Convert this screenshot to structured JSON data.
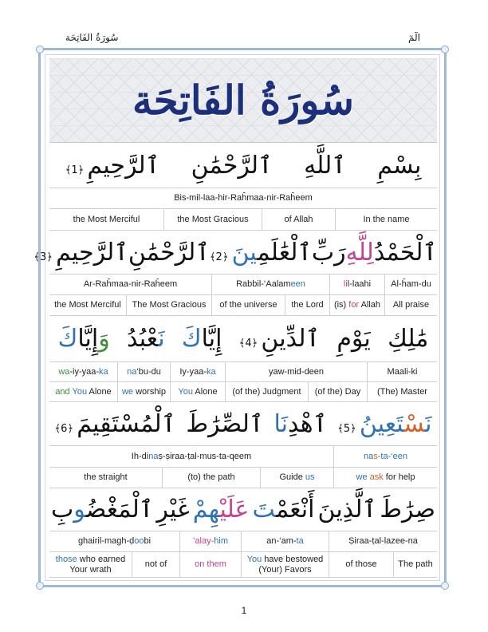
{
  "header": {
    "left": "سُورَةُ الفَاتِحَة",
    "right": "الٓمٓ"
  },
  "banner_title": "سُورَةُ الفَاتِحَة",
  "page_number": "1",
  "colors": {
    "green": "#3f8f3a",
    "blue": "#2f72b5",
    "pink": "#c2448e",
    "orange": "#d4632c",
    "title": "#1c2f7a",
    "frame": "#9db7d6"
  },
  "verses": [
    {
      "arabic": [
        [
          {
            "t": "بِسْمِ"
          }
        ],
        [
          {
            "t": "ٱللَّهِ"
          }
        ],
        [
          {
            "t": "ٱلرَّحْمَٰنِ"
          }
        ],
        [
          {
            "t": "ٱلرَّحِيمِ"
          },
          {
            "t": " ﴿1﴾",
            "m": 1
          }
        ]
      ],
      "translit": [
        [
          {
            "t": "Bis-mil-laa-hir-Raĥmaa-nir-Raĥeem"
          }
        ]
      ],
      "english": [
        [
          {
            "t": "the Most Merciful"
          }
        ],
        [
          {
            "t": "the Most Gracious"
          }
        ],
        [
          {
            "t": "of Allah"
          }
        ],
        [
          {
            "t": "In the name"
          }
        ]
      ]
    },
    {
      "arabic": [
        [
          {
            "t": "ٱلْحَمْدُ"
          }
        ],
        [
          {
            "t": "لِلَّهِ",
            "c": "pink"
          }
        ],
        [
          {
            "t": "رَبِّ"
          }
        ],
        [
          {
            "t": "ٱلْعَٰلَمِ"
          },
          {
            "t": "ينَ",
            "c": "blue"
          },
          {
            "t": " ﴿2﴾",
            "m": 1
          }
        ],
        [
          {
            "t": "ٱلرَّحْمَٰنِ"
          }
        ],
        [
          {
            "t": "ٱلرَّحِيمِ"
          },
          {
            "t": " ﴿3﴾",
            "m": 1
          }
        ]
      ],
      "translit": [
        [
          {
            "t": "Ar-Raĥmaa-nir-Raĥeem"
          }
        ],
        [
          {
            "t": "Rabbil-‘Aalam"
          },
          {
            "t": "een",
            "c": "blue"
          }
        ],
        [
          {
            "t": "li",
            "c": "pink"
          },
          {
            "t": "l-laahi"
          }
        ],
        [
          {
            "t": "Al-ĥam-du"
          }
        ]
      ],
      "english": [
        [
          {
            "t": "the Most Merciful"
          }
        ],
        [
          {
            "t": "The Most Gracious"
          }
        ],
        [
          {
            "t": "of the universe"
          }
        ],
        [
          {
            "t": "the Lord"
          }
        ],
        [
          {
            "t": "(is) "
          },
          {
            "t": "for",
            "c": "pink"
          },
          {
            "t": " Allah"
          }
        ],
        [
          {
            "t": "All praise"
          }
        ]
      ]
    },
    {
      "arabic": [
        [
          {
            "t": "مَٰلِكِ"
          }
        ],
        [
          {
            "t": "يَوْمِ"
          }
        ],
        [
          {
            "t": "ٱلدِّينِ"
          },
          {
            "t": " ﴿4﴾",
            "m": 1
          }
        ],
        [
          {
            "t": "إِيَّا"
          },
          {
            "t": "كَ",
            "c": "blue"
          }
        ],
        [
          {
            "t": "نَ",
            "c": "blue"
          },
          {
            "t": "عْبُدُ"
          }
        ],
        [
          {
            "t": "وَ",
            "c": "green"
          },
          {
            "t": "إِيَّا"
          },
          {
            "t": "كَ",
            "c": "blue"
          }
        ]
      ],
      "translit": [
        [
          {
            "t": "wa",
            "c": "green"
          },
          {
            "t": "-iy-yaa-"
          },
          {
            "t": "ka",
            "c": "blue"
          }
        ],
        [
          {
            "t": "na",
            "c": "blue"
          },
          {
            "t": "‘bu-du"
          }
        ],
        [
          {
            "t": "Iy-yaa-"
          },
          {
            "t": "ka",
            "c": "blue"
          }
        ],
        [
          {
            "t": "yaw-mid-deen"
          }
        ],
        [
          {
            "t": "Maali-ki"
          }
        ]
      ],
      "english": [
        [
          {
            "t": "and",
            "c": "green"
          },
          {
            "t": " "
          },
          {
            "t": "You",
            "c": "blue"
          },
          {
            "t": " Alone"
          }
        ],
        [
          {
            "t": "we",
            "c": "blue"
          },
          {
            "t": " worship"
          }
        ],
        [
          {
            "t": "You",
            "c": "blue"
          },
          {
            "t": " Alone"
          }
        ],
        [
          {
            "t": "(of the) Judgment"
          }
        ],
        [
          {
            "t": "(of the) Day"
          }
        ],
        [
          {
            "t": "(The) Master"
          }
        ]
      ]
    },
    {
      "arabic": [
        [
          {
            "t": "نَ",
            "c": "blue"
          },
          {
            "t": "سْ",
            "c": "orange"
          },
          {
            "t": "تَعِينُ",
            "c": "blue"
          },
          {
            "t": " ﴿5﴾",
            "m": 1
          }
        ],
        [
          {
            "t": "ٱهْدِ"
          },
          {
            "t": "نَا",
            "c": "blue"
          }
        ],
        [
          {
            "t": "ٱلصِّرَٰطَ"
          }
        ],
        [
          {
            "t": "ٱلْمُسْتَقِيمَ"
          },
          {
            "t": " ﴿6﴾",
            "m": 1
          }
        ]
      ],
      "translit": [
        [
          {
            "t": "Ih-di"
          },
          {
            "t": "na",
            "c": "blue"
          },
          {
            "t": "ṣ-ṣiraa-ṭal-mus-ta-qeem"
          }
        ],
        [
          {
            "t": "na",
            "c": "blue"
          },
          {
            "t": "s",
            "c": "orange"
          },
          {
            "t": "-ta-‘een",
            "c": "blue"
          }
        ]
      ],
      "english": [
        [
          {
            "t": "the straight"
          }
        ],
        [
          {
            "t": "(to) the path"
          }
        ],
        [
          {
            "t": "Guide "
          },
          {
            "t": "us",
            "c": "blue"
          }
        ],
        [
          {
            "t": "we",
            "c": "blue"
          },
          {
            "t": " "
          },
          {
            "t": "ask",
            "c": "orange"
          },
          {
            "t": " for help"
          }
        ]
      ]
    },
    {
      "arabic": [
        [
          {
            "t": "صِرَٰطَ"
          }
        ],
        [
          {
            "t": "ٱلَّذِينَ"
          }
        ],
        [
          {
            "t": "أَنْعَمْ"
          },
          {
            "t": "تَ",
            "c": "blue"
          }
        ],
        [
          {
            "t": "عَلَيْ",
            "c": "pink"
          },
          {
            "t": "هِمْ",
            "c": "blue"
          }
        ],
        [
          {
            "t": "غَيْرِ"
          }
        ],
        [
          {
            "t": "ٱلْمَغْضُ"
          },
          {
            "t": "و",
            "c": "blue"
          },
          {
            "t": "بِ"
          }
        ]
      ],
      "translit": [
        [
          {
            "t": "ghairil-magh-ḍ"
          },
          {
            "t": "oo",
            "c": "blue"
          },
          {
            "t": "bi"
          }
        ],
        [
          {
            "t": "‘alay-",
            "c": "pink"
          },
          {
            "t": "him",
            "c": "blue"
          }
        ],
        [
          {
            "t": "an-‘am-"
          },
          {
            "t": "ta",
            "c": "blue"
          }
        ],
        [
          {
            "t": "Ṣiraa-ṭal-lazee-na"
          }
        ]
      ],
      "english": [
        [
          {
            "t": "those",
            "c": "blue"
          },
          {
            "t": " who earned Your wrath"
          }
        ],
        [
          {
            "t": "not of"
          }
        ],
        [
          {
            "t": "on them",
            "c": "pink"
          }
        ],
        [
          {
            "t": "You",
            "c": "blue"
          },
          {
            "t": " have bestowed (Your) Favors"
          }
        ],
        [
          {
            "t": "of those"
          }
        ],
        [
          {
            "t": "The path"
          }
        ]
      ]
    }
  ]
}
